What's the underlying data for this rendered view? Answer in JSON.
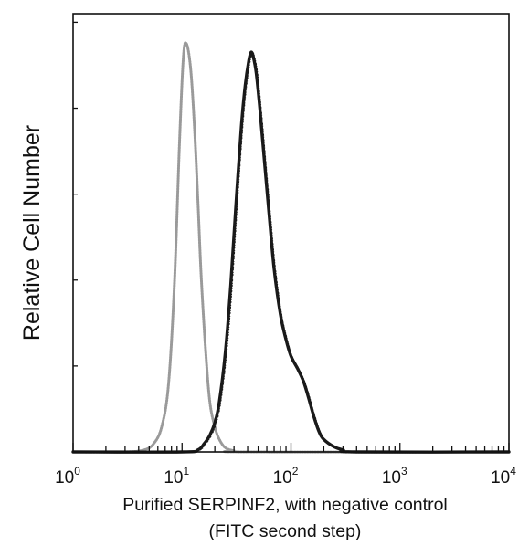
{
  "chart_data": {
    "type": "area",
    "title": "",
    "xlabel": "Purified SERPINF2, with negative control",
    "xlabel_line2": "(FITC second step)",
    "ylabel": "Relative Cell Number",
    "x_scale": "log",
    "xlim": [
      1,
      10000
    ],
    "ylim": [
      0,
      100
    ],
    "grid": false,
    "legend": "none",
    "x_ticks": [
      {
        "base": "10",
        "exp": "0",
        "value": 1
      },
      {
        "base": "10",
        "exp": "1",
        "value": 10
      },
      {
        "base": "10",
        "exp": "2",
        "value": 100
      },
      {
        "base": "10",
        "exp": "3",
        "value": 1000
      },
      {
        "base": "10",
        "exp": "4",
        "value": 10000
      }
    ],
    "series": [
      {
        "style": "dotted",
        "color": "#9a9a9a",
        "x": [
          1,
          3,
          4.5,
          5.5,
          6.5,
          7.5,
          8.5,
          9.5,
          10.3,
          11,
          12,
          13,
          14,
          15,
          16.5,
          18,
          20,
          22,
          25,
          30,
          40,
          10000
        ],
        "y": [
          0,
          0,
          0.5,
          2,
          6,
          16,
          40,
          75,
          95,
          98,
          92,
          78,
          60,
          42,
          24,
          12,
          6,
          3,
          1,
          0.3,
          0,
          0
        ]
      },
      {
        "style": "solid",
        "color": "#1a1a1a",
        "x": [
          1,
          10,
          14,
          16,
          18,
          20,
          22,
          25,
          28,
          31,
          35,
          38,
          41,
          43,
          45,
          48,
          52,
          57,
          63,
          70,
          80,
          90,
          100,
          115,
          130,
          145,
          160,
          180,
          200,
          250,
          300,
          400,
          10000
        ],
        "y": [
          0,
          0,
          0.5,
          2,
          4,
          7,
          12,
          24,
          40,
          58,
          78,
          88,
          94,
          96,
          95,
          91,
          82,
          70,
          57,
          44,
          33,
          27,
          23,
          20,
          17,
          13,
          9,
          5,
          3,
          1.2,
          0.5,
          0,
          0
        ]
      }
    ]
  }
}
